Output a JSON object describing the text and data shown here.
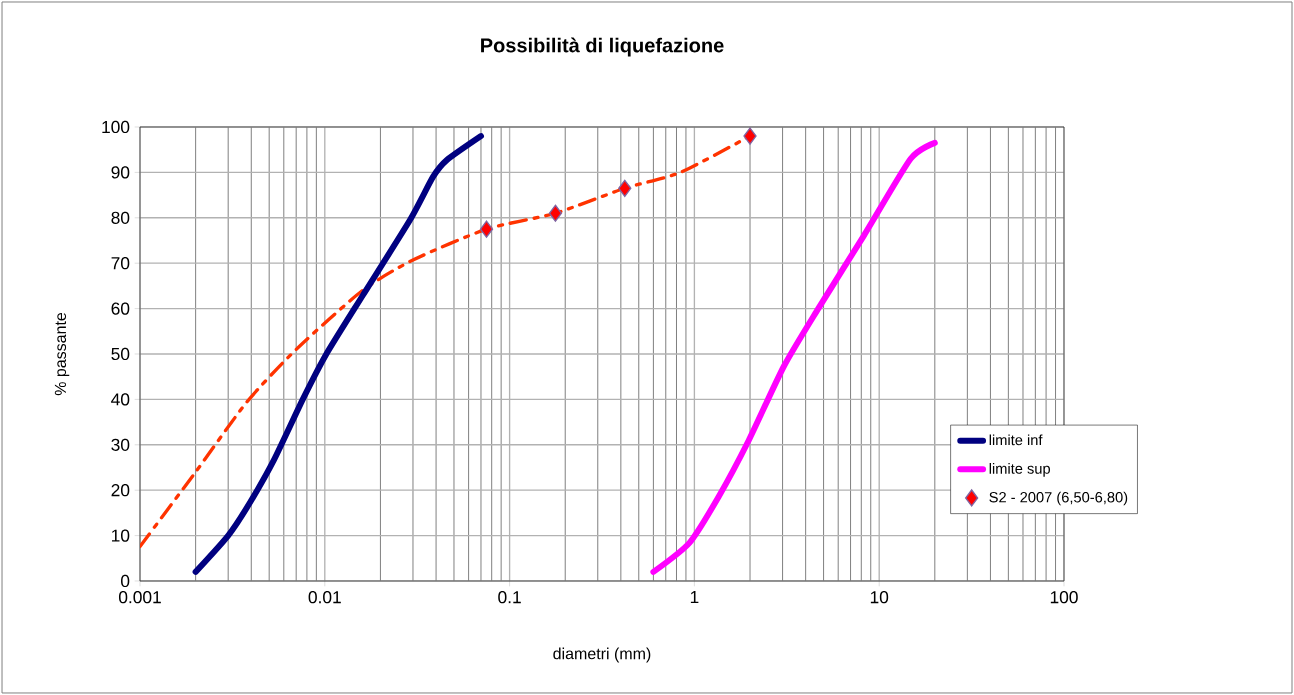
{
  "chart_data": {
    "type": "line",
    "title": "Possibilità di liquefazione",
    "xlabel": "diametri (mm)",
    "ylabel": "% passante",
    "log": "x",
    "grid": true,
    "legend": "right",
    "xlim": [
      0.001,
      100
    ],
    "xticks": [
      0.001,
      0.01,
      0.1,
      1,
      10,
      100
    ],
    "ylim": [
      0,
      100
    ],
    "yticks": [
      0,
      10,
      20,
      30,
      40,
      50,
      60,
      70,
      80,
      90,
      100
    ],
    "series": [
      {
        "type": "line",
        "color": "#ff3300",
        "line_style": "dashed",
        "x": [
          0.001,
          0.002,
          0.0038,
          0.007,
          0.016,
          0.03,
          0.075,
          0.177,
          0.42,
          0.84,
          2.0
        ],
        "values": [
          7.6,
          24,
          39.5,
          51,
          64,
          70.7,
          77.5,
          81,
          86.5,
          90,
          98
        ]
      },
      {
        "type": "line",
        "name": "limite inf",
        "color": "#000080",
        "line_style": "solid",
        "x": [
          0.002,
          0.003,
          0.0039,
          0.0053,
          0.0076,
          0.0102,
          0.0161,
          0.0289,
          0.0385,
          0.0457,
          0.07
        ],
        "values": [
          2,
          10,
          17,
          26.6,
          40,
          50,
          63,
          79.5,
          89,
          92.7,
          98
        ]
      },
      {
        "type": "line",
        "name": "limite sup",
        "color": "#ff00ff",
        "line_style": "solid",
        "x": [
          0.6,
          0.94,
          1.35,
          1.97,
          3.05,
          4.68,
          8.3,
          14.8,
          20
        ],
        "values": [
          2,
          8.4,
          18.5,
          31,
          47.3,
          60,
          76.2,
          93,
          96.5
        ]
      },
      {
        "type": "scatter",
        "name": "S2 - 2007 (6,50-6,80)",
        "color": "#ff0000",
        "marker": "diamond",
        "x": [
          0.075,
          0.177,
          0.42,
          2.0
        ],
        "values": [
          77.5,
          81,
          86.5,
          98
        ]
      }
    ]
  }
}
